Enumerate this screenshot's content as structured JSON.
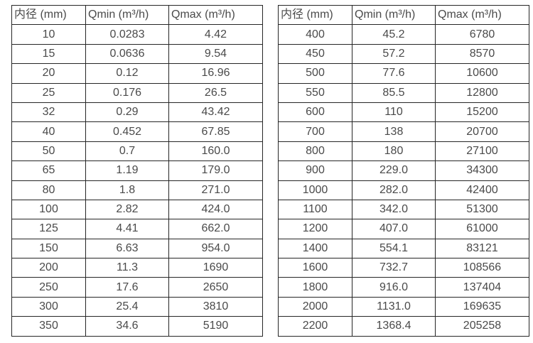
{
  "page": {
    "background_color": "#ffffff",
    "text_color": "#4a4a4a",
    "border_color": "#262626"
  },
  "tables": [
    {
      "name": "flow-table-small-diameters",
      "headers": [
        "内径 (mm)",
        "Qmin (m³/h)",
        "Qmax (m³/h)"
      ],
      "rows": [
        [
          "10",
          "0.0283",
          "4.42"
        ],
        [
          "15",
          "0.0636",
          "9.54"
        ],
        [
          "20",
          "0.12",
          "16.96"
        ],
        [
          "25",
          "0.176",
          "26.5"
        ],
        [
          "32",
          "0.29",
          "43.42"
        ],
        [
          "40",
          "0.452",
          "67.85"
        ],
        [
          "50",
          "0.7",
          "160.0"
        ],
        [
          "65",
          "1.19",
          "179.0"
        ],
        [
          "80",
          "1.8",
          "271.0"
        ],
        [
          "100",
          "2.82",
          "424.0"
        ],
        [
          "125",
          "4.41",
          "662.0"
        ],
        [
          "150",
          "6.63",
          "954.0"
        ],
        [
          "200",
          "11.3",
          "1690"
        ],
        [
          "250",
          "17.6",
          "2650"
        ],
        [
          "300",
          "25.4",
          "3810"
        ],
        [
          "350",
          "34.6",
          "5190"
        ]
      ]
    },
    {
      "name": "flow-table-large-diameters",
      "headers": [
        "内径 (mm)",
        "Qmin (m³/h)",
        "Qmax (m³/h)"
      ],
      "rows": [
        [
          "400",
          "45.2",
          "6780"
        ],
        [
          "450",
          "57.2",
          "8570"
        ],
        [
          "500",
          "77.6",
          "10600"
        ],
        [
          "550",
          "85.5",
          "12800"
        ],
        [
          "600",
          "110",
          "15200"
        ],
        [
          "700",
          "138",
          "20700"
        ],
        [
          "800",
          "180",
          "27100"
        ],
        [
          "900",
          "229.0",
          "34300"
        ],
        [
          "1000",
          "282.0",
          "42400"
        ],
        [
          "1100",
          "342.0",
          "51300"
        ],
        [
          "1200",
          "407.0",
          "61000"
        ],
        [
          "1400",
          "554.1",
          "83121"
        ],
        [
          "1600",
          "732.7",
          "108566"
        ],
        [
          "1800",
          "916.0",
          "137404"
        ],
        [
          "2000",
          "1131.0",
          "169635"
        ],
        [
          "2200",
          "1368.4",
          "205258"
        ]
      ]
    }
  ]
}
